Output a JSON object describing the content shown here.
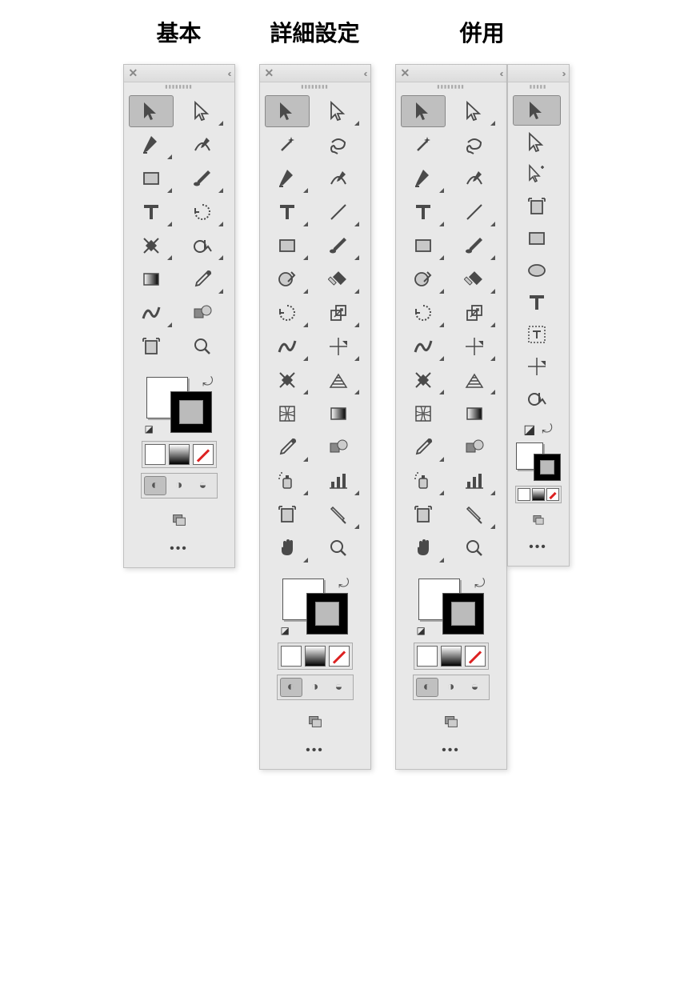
{
  "titles": {
    "basic": "基本",
    "advanced": "詳細設定",
    "combined": "併用"
  },
  "colors": {
    "panel_bg": "#e8e8e8",
    "selected_bg": "#bfbfbf",
    "icon": "#4a4a4a",
    "none_stroke": "#d22222"
  },
  "header": {
    "close": "✕",
    "collapse_left": "‹‹",
    "expand_right": "››"
  },
  "basic_tools": [
    {
      "name": "selection",
      "selected": true,
      "flyout": false
    },
    {
      "name": "direct-selection",
      "flyout": true
    },
    {
      "name": "pen",
      "flyout": true
    },
    {
      "name": "curvature-pen",
      "flyout": false
    },
    {
      "name": "rectangle",
      "flyout": true
    },
    {
      "name": "paintbrush",
      "flyout": true
    },
    {
      "name": "type",
      "flyout": true
    },
    {
      "name": "rotate",
      "flyout": true
    },
    {
      "name": "shape-builder",
      "flyout": true
    },
    {
      "name": "live-paint",
      "flyout": true
    },
    {
      "name": "gradient",
      "flyout": false
    },
    {
      "name": "eyedropper",
      "flyout": true
    },
    {
      "name": "width",
      "flyout": true
    },
    {
      "name": "blend",
      "flyout": false
    },
    {
      "name": "artboard",
      "flyout": false
    },
    {
      "name": "zoom",
      "flyout": false
    }
  ],
  "advanced_tools": [
    {
      "name": "selection",
      "selected": true,
      "flyout": false
    },
    {
      "name": "direct-selection",
      "flyout": true
    },
    {
      "name": "magic-wand",
      "flyout": false
    },
    {
      "name": "lasso",
      "flyout": false
    },
    {
      "name": "pen",
      "flyout": true
    },
    {
      "name": "curvature-pen",
      "flyout": false
    },
    {
      "name": "type",
      "flyout": true
    },
    {
      "name": "line-segment",
      "flyout": true
    },
    {
      "name": "rectangle",
      "flyout": true
    },
    {
      "name": "paintbrush",
      "flyout": true
    },
    {
      "name": "shaper",
      "flyout": true
    },
    {
      "name": "eraser",
      "flyout": true
    },
    {
      "name": "rotate",
      "flyout": true
    },
    {
      "name": "scale",
      "flyout": true
    },
    {
      "name": "width",
      "flyout": true
    },
    {
      "name": "free-transform",
      "flyout": true
    },
    {
      "name": "shape-builder",
      "flyout": true
    },
    {
      "name": "perspective-grid",
      "flyout": true
    },
    {
      "name": "mesh",
      "flyout": false
    },
    {
      "name": "gradient",
      "flyout": false
    },
    {
      "name": "eyedropper",
      "flyout": true
    },
    {
      "name": "blend",
      "flyout": false
    },
    {
      "name": "symbol-sprayer",
      "flyout": true
    },
    {
      "name": "column-graph",
      "flyout": true
    },
    {
      "name": "artboard",
      "flyout": false
    },
    {
      "name": "slice",
      "flyout": true
    },
    {
      "name": "hand",
      "flyout": true
    },
    {
      "name": "zoom",
      "flyout": false
    }
  ],
  "custom_tools": [
    {
      "name": "selection",
      "selected": true
    },
    {
      "name": "direct-selection"
    },
    {
      "name": "group-selection"
    },
    {
      "name": "artboard"
    },
    {
      "name": "rectangle"
    },
    {
      "name": "ellipse"
    },
    {
      "name": "type"
    },
    {
      "name": "area-type"
    },
    {
      "name": "free-transform"
    },
    {
      "name": "live-paint"
    }
  ]
}
